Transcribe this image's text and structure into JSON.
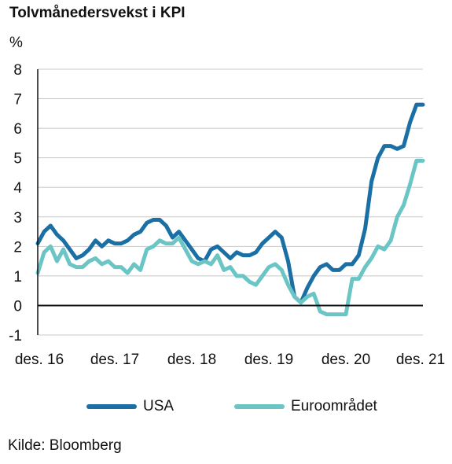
{
  "chart_data": {
    "type": "line",
    "title": "Tolvmånedersvekst i KPI",
    "ylabel": "%",
    "ylim": [
      -1,
      8
    ],
    "yticks": [
      "-1",
      "0",
      "1",
      "2",
      "3",
      "4",
      "5",
      "6",
      "7",
      "8"
    ],
    "xlim": [
      2016.917,
      2021.917
    ],
    "xticks": [
      {
        "label": "des. 16",
        "x": 2016.917
      },
      {
        "label": "des. 17",
        "x": 2017.917
      },
      {
        "label": "des. 18",
        "x": 2018.917
      },
      {
        "label": "des. 19",
        "x": 2019.917
      },
      {
        "label": "des. 20",
        "x": 2020.917
      },
      {
        "label": "des. 21",
        "x": 2021.917
      }
    ],
    "grid": "horizontal",
    "legend_position": "bottom",
    "series": [
      {
        "name": "USA",
        "color": "#1a6fa5",
        "points": [
          [
            2016.917,
            2.1
          ],
          [
            2017.0,
            2.5
          ],
          [
            2017.083,
            2.7
          ],
          [
            2017.167,
            2.4
          ],
          [
            2017.25,
            2.2
          ],
          [
            2017.333,
            1.9
          ],
          [
            2017.417,
            1.6
          ],
          [
            2017.5,
            1.7
          ],
          [
            2017.583,
            1.9
          ],
          [
            2017.667,
            2.2
          ],
          [
            2017.75,
            2.0
          ],
          [
            2017.833,
            2.2
          ],
          [
            2017.917,
            2.1
          ],
          [
            2018.0,
            2.1
          ],
          [
            2018.083,
            2.2
          ],
          [
            2018.167,
            2.4
          ],
          [
            2018.25,
            2.5
          ],
          [
            2018.333,
            2.8
          ],
          [
            2018.417,
            2.9
          ],
          [
            2018.5,
            2.9
          ],
          [
            2018.583,
            2.7
          ],
          [
            2018.667,
            2.3
          ],
          [
            2018.75,
            2.5
          ],
          [
            2018.833,
            2.2
          ],
          [
            2018.917,
            1.9
          ],
          [
            2019.0,
            1.6
          ],
          [
            2019.083,
            1.5
          ],
          [
            2019.167,
            1.9
          ],
          [
            2019.25,
            2.0
          ],
          [
            2019.333,
            1.8
          ],
          [
            2019.417,
            1.6
          ],
          [
            2019.5,
            1.8
          ],
          [
            2019.583,
            1.7
          ],
          [
            2019.667,
            1.7
          ],
          [
            2019.75,
            1.8
          ],
          [
            2019.833,
            2.1
          ],
          [
            2019.917,
            2.3
          ],
          [
            2020.0,
            2.5
          ],
          [
            2020.083,
            2.3
          ],
          [
            2020.167,
            1.5
          ],
          [
            2020.25,
            0.3
          ],
          [
            2020.333,
            0.1
          ],
          [
            2020.417,
            0.6
          ],
          [
            2020.5,
            1.0
          ],
          [
            2020.583,
            1.3
          ],
          [
            2020.667,
            1.4
          ],
          [
            2020.75,
            1.2
          ],
          [
            2020.833,
            1.2
          ],
          [
            2020.917,
            1.4
          ],
          [
            2021.0,
            1.4
          ],
          [
            2021.083,
            1.7
          ],
          [
            2021.167,
            2.6
          ],
          [
            2021.25,
            4.2
          ],
          [
            2021.333,
            5.0
          ],
          [
            2021.417,
            5.4
          ],
          [
            2021.5,
            5.4
          ],
          [
            2021.583,
            5.3
          ],
          [
            2021.667,
            5.4
          ],
          [
            2021.75,
            6.2
          ],
          [
            2021.833,
            6.8
          ],
          [
            2021.917,
            6.8
          ]
        ]
      },
      {
        "name": "Euroområdet",
        "color": "#6cc5c5",
        "points": [
          [
            2016.917,
            1.1
          ],
          [
            2017.0,
            1.8
          ],
          [
            2017.083,
            2.0
          ],
          [
            2017.167,
            1.5
          ],
          [
            2017.25,
            1.9
          ],
          [
            2017.333,
            1.4
          ],
          [
            2017.417,
            1.3
          ],
          [
            2017.5,
            1.3
          ],
          [
            2017.583,
            1.5
          ],
          [
            2017.667,
            1.6
          ],
          [
            2017.75,
            1.4
          ],
          [
            2017.833,
            1.5
          ],
          [
            2017.917,
            1.3
          ],
          [
            2018.0,
            1.3
          ],
          [
            2018.083,
            1.1
          ],
          [
            2018.167,
            1.4
          ],
          [
            2018.25,
            1.2
          ],
          [
            2018.333,
            1.9
          ],
          [
            2018.417,
            2.0
          ],
          [
            2018.5,
            2.2
          ],
          [
            2018.583,
            2.1
          ],
          [
            2018.667,
            2.1
          ],
          [
            2018.75,
            2.3
          ],
          [
            2018.833,
            1.9
          ],
          [
            2018.917,
            1.5
          ],
          [
            2019.0,
            1.4
          ],
          [
            2019.083,
            1.5
          ],
          [
            2019.167,
            1.4
          ],
          [
            2019.25,
            1.7
          ],
          [
            2019.333,
            1.2
          ],
          [
            2019.417,
            1.3
          ],
          [
            2019.5,
            1.0
          ],
          [
            2019.583,
            1.0
          ],
          [
            2019.667,
            0.8
          ],
          [
            2019.75,
            0.7
          ],
          [
            2019.833,
            1.0
          ],
          [
            2019.917,
            1.3
          ],
          [
            2020.0,
            1.4
          ],
          [
            2020.083,
            1.2
          ],
          [
            2020.167,
            0.7
          ],
          [
            2020.25,
            0.3
          ],
          [
            2020.333,
            0.1
          ],
          [
            2020.417,
            0.3
          ],
          [
            2020.5,
            0.4
          ],
          [
            2020.583,
            -0.2
          ],
          [
            2020.667,
            -0.3
          ],
          [
            2020.75,
            -0.3
          ],
          [
            2020.833,
            -0.3
          ],
          [
            2020.917,
            -0.3
          ],
          [
            2021.0,
            0.9
          ],
          [
            2021.083,
            0.9
          ],
          [
            2021.167,
            1.3
          ],
          [
            2021.25,
            1.6
          ],
          [
            2021.333,
            2.0
          ],
          [
            2021.417,
            1.9
          ],
          [
            2021.5,
            2.2
          ],
          [
            2021.583,
            3.0
          ],
          [
            2021.667,
            3.4
          ],
          [
            2021.75,
            4.1
          ],
          [
            2021.833,
            4.9
          ],
          [
            2021.917,
            4.9
          ]
        ]
      }
    ],
    "source": "Kilde: Bloomberg"
  }
}
